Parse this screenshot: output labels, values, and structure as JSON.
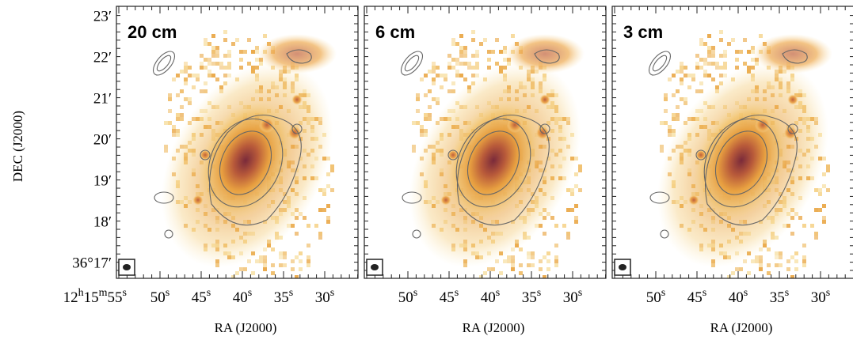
{
  "y_axis": {
    "label": "DEC (J2000)",
    "ticks": [
      "23′",
      "22′",
      "21′",
      "20′",
      "19′",
      "18′",
      "36°17′"
    ]
  },
  "panels": [
    {
      "label": "20 cm",
      "x_label": "RA (J2000)",
      "x_ticks": [
        [
          [
            "12",
            "h"
          ],
          [
            "15",
            "m"
          ],
          [
            "55",
            "s"
          ]
        ],
        [
          [
            "50",
            "s"
          ]
        ],
        [
          [
            "45",
            "s"
          ]
        ],
        [
          [
            "40",
            "s"
          ]
        ],
        [
          [
            "35",
            "s"
          ]
        ],
        [
          [
            "30",
            "s"
          ]
        ]
      ]
    },
    {
      "label": "6 cm",
      "x_label": "RA (J2000)",
      "x_ticks": [
        [
          [
            "50",
            "s"
          ]
        ],
        [
          [
            "45",
            "s"
          ]
        ],
        [
          [
            "40",
            "s"
          ]
        ],
        [
          [
            "35",
            "s"
          ]
        ],
        [
          [
            "30",
            "s"
          ]
        ]
      ]
    },
    {
      "label": "3 cm",
      "x_label": "RA (J2000)",
      "x_ticks": [
        [
          [
            "50",
            "s"
          ]
        ],
        [
          [
            "45",
            "s"
          ]
        ],
        [
          [
            "40",
            "s"
          ]
        ],
        [
          [
            "35",
            "s"
          ]
        ],
        [
          [
            "30",
            "s"
          ]
        ]
      ]
    }
  ]
}
